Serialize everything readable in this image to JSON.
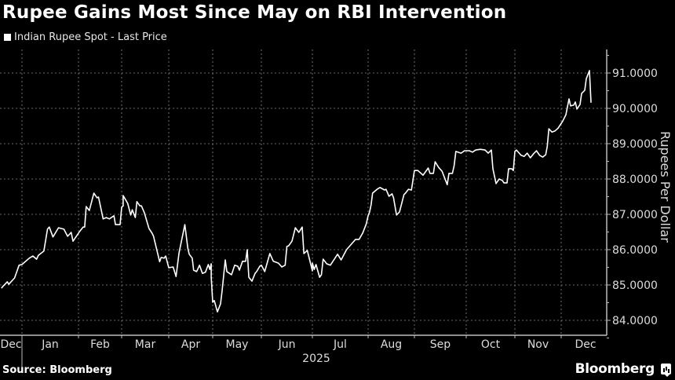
{
  "header": {
    "title": "Rupee Gains Most Since May on RBI Intervention",
    "legend_label": "Indian Rupee Spot - Last Price"
  },
  "footer": {
    "source": "Source: Bloomberg",
    "brand": "Bloomberg"
  },
  "colors": {
    "background": "#000000",
    "line": "#ffffff",
    "grid": "#8a8a8a",
    "axis": "#bdbdbd",
    "text": "#dcdcdc"
  },
  "chart_data": {
    "type": "line",
    "title": "Rupee Gains Most Since May on RBI Intervention",
    "xlabel": "2025",
    "ylabel": "Rupees Per Dollar",
    "ylim": [
      83.55,
      91.7
    ],
    "yticks": [
      84,
      85,
      86,
      87,
      88,
      89,
      90,
      91
    ],
    "ytick_labels": [
      "84.0000",
      "85.0000",
      "86.0000",
      "87.0000",
      "88.0000",
      "89.0000",
      "90.0000",
      "91.0000"
    ],
    "xtick_labels": [
      "Dec",
      "Jan",
      "Feb",
      "Mar",
      "Apr",
      "May",
      "Jun",
      "Jul",
      "Aug",
      "Sep",
      "Oct",
      "Nov",
      "Dec"
    ],
    "year_label": "2025",
    "grid": true,
    "legend": [
      "Indian Rupee Spot - Last Price"
    ],
    "legend_position": "top-left",
    "series": [
      {
        "name": "Indian Rupee Spot - Last Price",
        "points": [
          [
            "2024-12-18",
            84.91
          ],
          [
            "2024-12-19",
            84.96
          ],
          [
            "2024-12-22",
            85.09
          ],
          [
            "2024-12-23",
            85.02
          ],
          [
            "2024-12-27",
            85.2
          ],
          [
            "2024-12-30",
            85.56
          ],
          [
            "2025-01-01",
            85.58
          ],
          [
            "2025-01-05",
            85.76
          ],
          [
            "2025-01-07",
            85.82
          ],
          [
            "2025-01-09",
            85.73
          ],
          [
            "2025-01-10",
            85.84
          ],
          [
            "2025-01-13",
            85.96
          ],
          [
            "2025-01-15",
            86.58
          ],
          [
            "2025-01-16",
            86.64
          ],
          [
            "2025-01-18",
            86.36
          ],
          [
            "2025-01-21",
            86.62
          ],
          [
            "2025-01-24",
            86.58
          ],
          [
            "2025-01-26",
            86.38
          ],
          [
            "2025-01-28",
            86.49
          ],
          [
            "2025-01-29",
            86.24
          ],
          [
            "2025-02-02",
            86.53
          ],
          [
            "2025-02-04",
            86.64
          ],
          [
            "2025-02-05",
            86.64
          ],
          [
            "2025-02-06",
            87.22
          ],
          [
            "2025-02-08",
            87.11
          ],
          [
            "2025-02-11",
            87.6
          ],
          [
            "2025-02-13",
            87.47
          ],
          [
            "2025-02-14",
            87.49
          ],
          [
            "2025-02-17",
            86.87
          ],
          [
            "2025-02-19",
            86.91
          ],
          [
            "2025-02-21",
            86.87
          ],
          [
            "2025-02-24",
            86.96
          ],
          [
            "2025-02-25",
            86.71
          ],
          [
            "2025-02-28",
            86.71
          ],
          [
            "2025-03-01",
            87.2
          ],
          [
            "2025-03-02",
            87.24
          ],
          [
            "2025-03-02",
            87.53
          ],
          [
            "2025-03-05",
            87.31
          ],
          [
            "2025-03-07",
            86.98
          ],
          [
            "2025-03-08",
            87.13
          ],
          [
            "2025-03-10",
            86.91
          ],
          [
            "2025-03-11",
            87.36
          ],
          [
            "2025-03-13",
            87.24
          ],
          [
            "2025-03-14",
            87.24
          ],
          [
            "2025-03-16",
            87.04
          ],
          [
            "2025-03-19",
            86.6
          ],
          [
            "2025-03-21",
            86.47
          ],
          [
            "2025-03-22",
            86.38
          ],
          [
            "2025-03-26",
            85.66
          ],
          [
            "2025-03-27",
            85.78
          ],
          [
            "2025-03-29",
            85.76
          ],
          [
            "2025-03-30",
            85.82
          ],
          [
            "2025-04-01",
            85.49
          ],
          [
            "2025-04-04",
            85.51
          ],
          [
            "2025-04-06",
            85.24
          ],
          [
            "2025-04-08",
            85.91
          ],
          [
            "2025-04-12",
            86.71
          ],
          [
            "2025-04-14",
            86.04
          ],
          [
            "2025-04-15",
            85.87
          ],
          [
            "2025-04-17",
            85.76
          ],
          [
            "2025-04-18",
            85.42
          ],
          [
            "2025-04-20",
            85.38
          ],
          [
            "2025-04-22",
            85.56
          ],
          [
            "2025-04-24",
            85.33
          ],
          [
            "2025-04-26",
            85.36
          ],
          [
            "2025-04-28",
            85.58
          ],
          [
            "2025-04-29",
            85.44
          ],
          [
            "2025-04-30",
            85.6
          ],
          [
            "2025-04-30",
            85.22
          ],
          [
            "2025-05-01",
            84.51
          ],
          [
            "2025-05-02",
            84.56
          ],
          [
            "2025-05-04",
            84.24
          ],
          [
            "2025-05-06",
            84.47
          ],
          [
            "2025-05-07",
            84.84
          ],
          [
            "2025-05-09",
            85.71
          ],
          [
            "2025-05-10",
            85.38
          ],
          [
            "2025-05-13",
            85.29
          ],
          [
            "2025-05-15",
            85.56
          ],
          [
            "2025-05-17",
            85.53
          ],
          [
            "2025-05-18",
            85.42
          ],
          [
            "2025-05-20",
            85.67
          ],
          [
            "2025-05-22",
            85.67
          ],
          [
            "2025-05-23",
            86.0
          ],
          [
            "2025-05-24",
            85.22
          ],
          [
            "2025-05-26",
            85.11
          ],
          [
            "2025-05-28",
            85.33
          ],
          [
            "2025-05-29",
            85.38
          ],
          [
            "2025-05-31",
            85.53
          ],
          [
            "2025-06-01",
            85.56
          ],
          [
            "2025-06-03",
            85.38
          ],
          [
            "2025-06-06",
            85.89
          ],
          [
            "2025-06-08",
            85.67
          ],
          [
            "2025-06-11",
            85.62
          ],
          [
            "2025-06-13",
            85.51
          ],
          [
            "2025-06-15",
            85.56
          ],
          [
            "2025-06-16",
            86.09
          ],
          [
            "2025-06-17",
            86.11
          ],
          [
            "2025-06-19",
            86.24
          ],
          [
            "2025-06-21",
            86.62
          ],
          [
            "2025-06-23",
            86.49
          ],
          [
            "2025-06-25",
            86.64
          ],
          [
            "2025-06-26",
            85.89
          ],
          [
            "2025-06-28",
            85.98
          ],
          [
            "2025-07-01",
            85.4
          ],
          [
            "2025-07-01",
            85.62
          ],
          [
            "2025-07-02",
            85.44
          ],
          [
            "2025-07-03",
            85.58
          ],
          [
            "2025-07-05",
            85.22
          ],
          [
            "2025-07-06",
            85.29
          ],
          [
            "2025-07-07",
            85.73
          ],
          [
            "2025-07-09",
            85.6
          ],
          [
            "2025-07-11",
            85.56
          ],
          [
            "2025-07-15",
            85.87
          ],
          [
            "2025-07-17",
            85.71
          ],
          [
            "2025-07-20",
            86.0
          ],
          [
            "2025-07-25",
            86.29
          ],
          [
            "2025-07-27",
            86.29
          ],
          [
            "2025-07-29",
            86.47
          ],
          [
            "2025-07-31",
            86.73
          ],
          [
            "2025-08-01",
            86.96
          ],
          [
            "2025-08-02",
            87.07
          ],
          [
            "2025-08-03",
            87.27
          ],
          [
            "2025-08-04",
            87.6
          ],
          [
            "2025-08-07",
            87.71
          ],
          [
            "2025-08-09",
            87.76
          ],
          [
            "2025-08-12",
            87.69
          ],
          [
            "2025-08-13",
            87.71
          ],
          [
            "2025-08-15",
            87.51
          ],
          [
            "2025-08-17",
            87.58
          ],
          [
            "2025-08-18",
            87.47
          ],
          [
            "2025-08-20",
            86.98
          ],
          [
            "2025-08-22",
            87.07
          ],
          [
            "2025-08-25",
            87.56
          ],
          [
            "2025-08-26",
            87.6
          ],
          [
            "2025-08-28",
            87.71
          ],
          [
            "2025-08-30",
            87.69
          ],
          [
            "2025-09-01",
            88.24
          ],
          [
            "2025-09-03",
            88.24
          ],
          [
            "2025-09-06",
            88.11
          ],
          [
            "2025-09-09",
            88.31
          ],
          [
            "2025-09-10",
            88.16
          ],
          [
            "2025-09-12",
            88.16
          ],
          [
            "2025-09-13",
            88.49
          ],
          [
            "2025-09-15",
            88.33
          ],
          [
            "2025-09-17",
            88.22
          ],
          [
            "2025-09-20",
            87.84
          ],
          [
            "2025-09-21",
            88.16
          ],
          [
            "2025-09-23",
            88.16
          ],
          [
            "2025-09-24",
            88.38
          ],
          [
            "2025-09-25",
            88.78
          ],
          [
            "2025-09-28",
            88.73
          ],
          [
            "2025-09-30",
            88.8
          ],
          [
            "2025-10-03",
            88.8
          ],
          [
            "2025-10-05",
            88.76
          ],
          [
            "2025-10-07",
            88.82
          ],
          [
            "2025-10-10",
            88.84
          ],
          [
            "2025-10-13",
            88.82
          ],
          [
            "2025-10-15",
            88.73
          ],
          [
            "2025-10-17",
            88.82
          ],
          [
            "2025-10-18",
            88.29
          ],
          [
            "2025-10-20",
            87.87
          ],
          [
            "2025-10-22",
            88.0
          ],
          [
            "2025-10-24",
            87.96
          ],
          [
            "2025-10-25",
            87.89
          ],
          [
            "2025-10-27",
            87.89
          ],
          [
            "2025-10-28",
            88.29
          ],
          [
            "2025-10-30",
            88.29
          ],
          [
            "2025-10-31",
            88.24
          ],
          [
            "2025-11-01",
            88.78
          ],
          [
            "2025-11-02",
            88.82
          ],
          [
            "2025-11-05",
            88.67
          ],
          [
            "2025-11-07",
            88.64
          ],
          [
            "2025-11-09",
            88.73
          ],
          [
            "2025-11-11",
            88.6
          ],
          [
            "2025-11-13",
            88.71
          ],
          [
            "2025-11-15",
            88.8
          ],
          [
            "2025-11-17",
            88.67
          ],
          [
            "2025-11-19",
            88.62
          ],
          [
            "2025-11-21",
            88.69
          ],
          [
            "2025-11-22",
            88.93
          ],
          [
            "2025-11-23",
            89.42
          ],
          [
            "2025-11-25",
            89.33
          ],
          [
            "2025-11-27",
            89.36
          ],
          [
            "2025-11-29",
            89.44
          ],
          [
            "2025-12-02",
            89.64
          ],
          [
            "2025-12-04",
            89.82
          ],
          [
            "2025-12-06",
            90.27
          ],
          [
            "2025-12-07",
            90.07
          ],
          [
            "2025-12-09",
            90.09
          ],
          [
            "2025-12-10",
            90.18
          ],
          [
            "2025-12-11",
            89.98
          ],
          [
            "2025-12-13",
            90.11
          ],
          [
            "2025-12-14",
            90.42
          ],
          [
            "2025-12-16",
            90.51
          ],
          [
            "2025-12-17",
            90.84
          ],
          [
            "2025-12-19",
            91.07
          ],
          [
            "2025-12-20",
            90.16
          ]
        ]
      }
    ]
  }
}
